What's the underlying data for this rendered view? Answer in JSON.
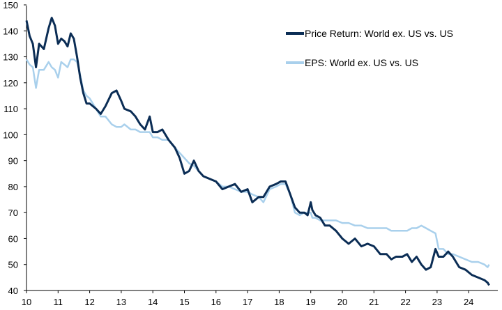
{
  "chart_data": {
    "type": "line",
    "title": "",
    "xlabel": "",
    "ylabel": "",
    "xlim": [
      10,
      24.75
    ],
    "ylim": [
      40,
      150
    ],
    "x_ticks": [
      "10",
      "11",
      "12",
      "13",
      "14",
      "15",
      "16",
      "17",
      "18",
      "19",
      "20",
      "21",
      "22",
      "23",
      "24"
    ],
    "y_ticks": [
      "150",
      "140",
      "130",
      "120",
      "110",
      "100",
      "90",
      "80",
      "70",
      "60",
      "50",
      "40"
    ],
    "grid": false,
    "legend_position": "top-right",
    "series": [
      {
        "name": "Price Return: World ex. US vs. US",
        "color": "#0b2d55",
        "x": [
          10.0,
          10.1,
          10.2,
          10.3,
          10.4,
          10.55,
          10.7,
          10.8,
          10.9,
          11.0,
          11.1,
          11.2,
          11.3,
          11.4,
          11.5,
          11.6,
          11.7,
          11.8,
          11.9,
          12.0,
          12.2,
          12.35,
          12.5,
          12.7,
          12.85,
          13.0,
          13.1,
          13.3,
          13.45,
          13.6,
          13.75,
          13.9,
          14.0,
          14.15,
          14.3,
          14.5,
          14.7,
          14.85,
          15.0,
          15.15,
          15.3,
          15.45,
          15.6,
          15.8,
          16.0,
          16.2,
          16.4,
          16.6,
          16.8,
          17.0,
          17.15,
          17.35,
          17.5,
          17.7,
          17.9,
          18.05,
          18.2,
          18.35,
          18.5,
          18.65,
          18.8,
          18.9,
          19.0,
          19.05,
          19.15,
          19.3,
          19.45,
          19.6,
          19.8,
          20.0,
          20.2,
          20.4,
          20.6,
          20.8,
          21.0,
          21.2,
          21.4,
          21.55,
          21.7,
          21.9,
          22.05,
          22.2,
          22.35,
          22.5,
          22.65,
          22.8,
          22.95,
          23.05,
          23.2,
          23.35,
          23.5,
          23.7,
          23.9,
          24.1,
          24.3,
          24.5,
          24.6,
          24.65
        ],
        "values": [
          144,
          138,
          135,
          126,
          135,
          133,
          141,
          145,
          142,
          135,
          137,
          136,
          134,
          139,
          137,
          130,
          122,
          116,
          112,
          112,
          110,
          108,
          111,
          116,
          117,
          113,
          110,
          109,
          107,
          104,
          102,
          107,
          101,
          101,
          102,
          98,
          95,
          91,
          85,
          86,
          90,
          86,
          84,
          83,
          82,
          79,
          80,
          81,
          78,
          79,
          74,
          76,
          76,
          80,
          81,
          82,
          82,
          77,
          72,
          70,
          70,
          69,
          74,
          71,
          69,
          68,
          65,
          65,
          63,
          60,
          58,
          60,
          57,
          58,
          57,
          54,
          54,
          52,
          53,
          53,
          54,
          51,
          53,
          50,
          48,
          49,
          56,
          53,
          53,
          55,
          53,
          49,
          48,
          46,
          45,
          44,
          43,
          42
        ]
      },
      {
        "name": "EPS: World ex. US vs. US",
        "color": "#a9d0ec",
        "x": [
          10.0,
          10.1,
          10.2,
          10.3,
          10.4,
          10.55,
          10.7,
          10.8,
          10.9,
          11.0,
          11.1,
          11.2,
          11.3,
          11.4,
          11.5,
          11.6,
          11.7,
          11.8,
          11.9,
          12.0,
          12.2,
          12.35,
          12.5,
          12.7,
          12.85,
          13.0,
          13.1,
          13.3,
          13.45,
          13.6,
          13.75,
          13.9,
          14.0,
          14.15,
          14.3,
          14.5,
          14.7,
          14.85,
          15.0,
          15.15,
          15.3,
          15.45,
          15.6,
          15.8,
          16.0,
          16.2,
          16.4,
          16.6,
          16.8,
          17.0,
          17.15,
          17.35,
          17.5,
          17.7,
          17.9,
          18.05,
          18.2,
          18.35,
          18.5,
          18.65,
          18.8,
          18.9,
          19.0,
          19.05,
          19.15,
          19.3,
          19.45,
          19.6,
          19.8,
          20.0,
          20.2,
          20.4,
          20.6,
          20.8,
          21.0,
          21.2,
          21.4,
          21.55,
          21.7,
          21.9,
          22.05,
          22.2,
          22.35,
          22.5,
          22.65,
          22.8,
          22.95,
          23.05,
          23.2,
          23.35,
          23.5,
          23.7,
          23.9,
          24.1,
          24.3,
          24.5,
          24.6,
          24.65
        ],
        "values": [
          129,
          127,
          126,
          118,
          125,
          125,
          128,
          126,
          125,
          122,
          128,
          127,
          126,
          129,
          129,
          128,
          123,
          117,
          115,
          114,
          110,
          107,
          107,
          104,
          103,
          103,
          104,
          102,
          102,
          101,
          101,
          101,
          99,
          99,
          98,
          98,
          95,
          93,
          91,
          89,
          88,
          86,
          84,
          83,
          82,
          80,
          80,
          79,
          78,
          78,
          77,
          76,
          74,
          79,
          80,
          81,
          81,
          77,
          70,
          69,
          70,
          70,
          70,
          68,
          68,
          67,
          67,
          67,
          67,
          66,
          66,
          65,
          65,
          64,
          64,
          64,
          64,
          63,
          63,
          63,
          63,
          64,
          64,
          65,
          64,
          63,
          62,
          56,
          56,
          54,
          54,
          53,
          52,
          51,
          51,
          50,
          49,
          50
        ]
      }
    ]
  }
}
